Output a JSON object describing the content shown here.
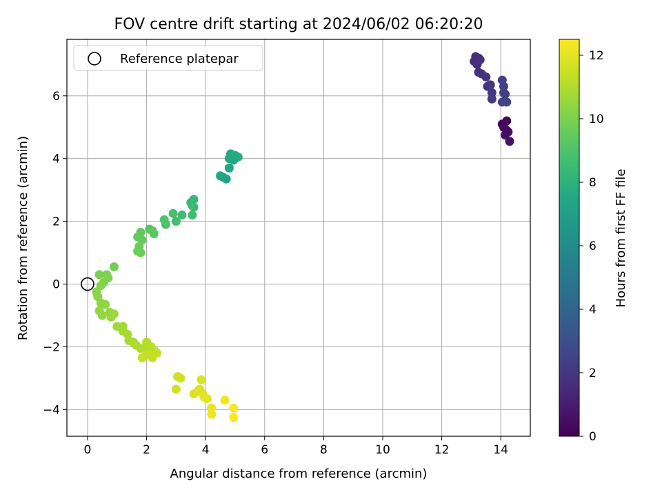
{
  "chart_data": {
    "type": "scatter",
    "title": "FOV centre drift starting at 2024/06/02 06:20:20",
    "xlabel": "Angular distance from reference (arcmin)",
    "ylabel": "Rotation from reference (arcmin)",
    "xlim": [
      -0.7,
      15.0
    ],
    "ylim": [
      -4.85,
      7.8
    ],
    "xticks": [
      0,
      2,
      4,
      6,
      8,
      10,
      12,
      14
    ],
    "yticks": [
      -4,
      -2,
      0,
      2,
      4,
      6
    ],
    "xtick_labels": [
      "0",
      "2",
      "4",
      "6",
      "8",
      "10",
      "12",
      "14"
    ],
    "ytick_labels": [
      "−4",
      "−2",
      "0",
      "2",
      "4",
      "6"
    ],
    "grid": true,
    "legend": {
      "position": "top-left",
      "entries": [
        "Reference platepar"
      ]
    },
    "reference_point": {
      "x": 0,
      "y": 0,
      "label": "Reference platepar"
    },
    "colorbar": {
      "label": "Hours from first FF file",
      "colormap": "viridis",
      "range": [
        0,
        12.5
      ],
      "ticks": [
        0,
        2,
        4,
        6,
        8,
        10,
        12
      ],
      "tick_labels": [
        "0",
        "2",
        "4",
        "6",
        "8",
        "10",
        "12"
      ]
    },
    "series": [
      {
        "points": [
          [
            13.1,
            7.1,
            1.6
          ],
          [
            13.15,
            7.25,
            1.6
          ],
          [
            13.25,
            7.2,
            1.6
          ],
          [
            13.3,
            7.15,
            1.7
          ],
          [
            13.2,
            7.0,
            1.7
          ],
          [
            13.25,
            6.75,
            1.8
          ],
          [
            13.35,
            6.7,
            1.8
          ],
          [
            13.5,
            6.6,
            1.9
          ],
          [
            13.55,
            6.3,
            2.0
          ],
          [
            13.65,
            6.35,
            2.0
          ],
          [
            13.7,
            6.1,
            2.1
          ],
          [
            13.7,
            5.9,
            2.1
          ],
          [
            14.05,
            6.5,
            2.3
          ],
          [
            14.1,
            6.3,
            2.3
          ],
          [
            14.1,
            6.1,
            2.4
          ],
          [
            14.15,
            6.05,
            2.4
          ],
          [
            14.05,
            5.8,
            2.5
          ],
          [
            14.2,
            5.8,
            2.5
          ],
          [
            14.05,
            5.1,
            0.1
          ],
          [
            14.2,
            5.2,
            0.2
          ],
          [
            14.1,
            5.0,
            0.3
          ],
          [
            14.2,
            4.9,
            0.4
          ],
          [
            14.15,
            4.75,
            0.5
          ],
          [
            14.25,
            4.85,
            0.4
          ],
          [
            14.3,
            4.55,
            0.6
          ]
        ]
      },
      {
        "points": [
          [
            4.85,
            4.15,
            7.6
          ],
          [
            5.0,
            4.1,
            7.7
          ],
          [
            5.1,
            4.05,
            7.6
          ],
          [
            4.95,
            3.95,
            7.5
          ],
          [
            4.8,
            4.0,
            7.5
          ],
          [
            4.8,
            3.7,
            7.4
          ],
          [
            4.5,
            3.45,
            7.3
          ],
          [
            4.6,
            3.4,
            7.4
          ],
          [
            4.7,
            3.35,
            7.2
          ],
          [
            3.6,
            2.7,
            8.2
          ],
          [
            3.5,
            2.6,
            8.4
          ],
          [
            3.55,
            2.5,
            8.3
          ],
          [
            3.6,
            2.45,
            8.5
          ],
          [
            3.55,
            2.2,
            8.6
          ],
          [
            3.2,
            2.2,
            8.6
          ],
          [
            2.9,
            2.25,
            8.8
          ],
          [
            3.0,
            2.0,
            8.7
          ],
          [
            2.6,
            2.05,
            9.0
          ],
          [
            2.65,
            1.9,
            9.0
          ],
          [
            2.1,
            1.75,
            9.2
          ],
          [
            2.2,
            1.7,
            9.3
          ],
          [
            2.25,
            1.6,
            9.3
          ],
          [
            1.8,
            1.65,
            9.4
          ],
          [
            1.7,
            1.5,
            9.5
          ],
          [
            1.85,
            1.4,
            9.5
          ],
          [
            1.75,
            1.2,
            9.6
          ],
          [
            1.7,
            1.05,
            9.6
          ],
          [
            1.8,
            1.0,
            9.7
          ],
          [
            0.9,
            0.55,
            9.8
          ],
          [
            0.4,
            0.3,
            10.0
          ],
          [
            0.65,
            0.3,
            10.0
          ],
          [
            0.7,
            0.2,
            10.1
          ],
          [
            0.55,
            0.05,
            10.1
          ],
          [
            0.45,
            -0.05,
            10.2
          ],
          [
            0.3,
            -0.25,
            10.3
          ],
          [
            0.35,
            -0.4,
            10.3
          ],
          [
            0.45,
            -0.6,
            10.4
          ],
          [
            0.6,
            -0.65,
            10.4
          ],
          [
            0.4,
            -0.85,
            10.5
          ],
          [
            0.5,
            -1.0,
            10.5
          ],
          [
            0.75,
            -0.9,
            10.5
          ],
          [
            0.8,
            -1.05,
            10.6
          ],
          [
            0.9,
            -0.95,
            10.6
          ],
          [
            1.0,
            -1.35,
            10.7
          ],
          [
            1.2,
            -1.35,
            10.7
          ],
          [
            1.2,
            -1.5,
            10.8
          ],
          [
            1.35,
            -1.6,
            10.8
          ],
          [
            1.4,
            -1.8,
            10.9
          ],
          [
            1.55,
            -1.85,
            10.9
          ],
          [
            1.65,
            -1.95,
            11.0
          ],
          [
            1.8,
            -2.05,
            11.0
          ],
          [
            1.95,
            -2.05,
            11.1
          ],
          [
            2.0,
            -1.85,
            11.1
          ],
          [
            2.15,
            -2.0,
            11.2
          ],
          [
            2.25,
            -2.1,
            11.2
          ],
          [
            2.35,
            -2.2,
            11.3
          ],
          [
            2.0,
            -2.25,
            11.3
          ],
          [
            2.15,
            -2.3,
            11.3
          ],
          [
            1.85,
            -2.35,
            11.4
          ],
          [
            2.2,
            -2.35,
            11.4
          ]
        ]
      },
      {
        "points": [
          [
            3.05,
            -2.95,
            11.6
          ],
          [
            3.15,
            -3.0,
            11.6
          ],
          [
            3.0,
            -3.35,
            11.7
          ],
          [
            3.6,
            -3.5,
            11.8
          ],
          [
            3.75,
            -3.4,
            11.8
          ],
          [
            3.85,
            -3.05,
            11.8
          ],
          [
            3.8,
            -3.35,
            11.9
          ],
          [
            3.9,
            -3.5,
            11.9
          ],
          [
            3.95,
            -3.6,
            12.0
          ],
          [
            4.05,
            -3.65,
            12.0
          ],
          [
            4.2,
            -3.95,
            12.1
          ],
          [
            4.2,
            -4.15,
            12.2
          ],
          [
            4.65,
            -3.7,
            12.3
          ],
          [
            4.95,
            -3.95,
            12.4
          ],
          [
            4.95,
            -4.25,
            12.5
          ]
        ]
      }
    ]
  }
}
